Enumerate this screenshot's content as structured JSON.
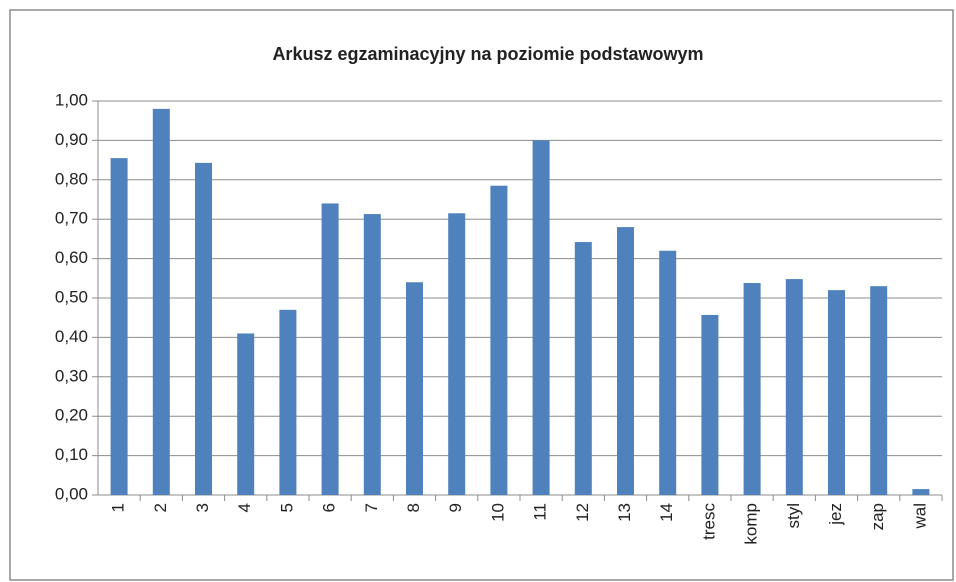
{
  "chart_data": {
    "type": "bar",
    "title": "Arkusz egzaminacyjny  na poziomie  podstawowym",
    "categories": [
      "1",
      "2",
      "3",
      "4",
      "5",
      "6",
      "7",
      "8",
      "9",
      "10",
      "11",
      "12",
      "13",
      "14",
      "tresc",
      "komp",
      "styl",
      "jez",
      "zap",
      "wal"
    ],
    "values": [
      0.855,
      0.98,
      0.843,
      0.41,
      0.47,
      0.74,
      0.713,
      0.54,
      0.715,
      0.785,
      0.9,
      0.642,
      0.68,
      0.62,
      0.457,
      0.538,
      0.548,
      0.52,
      0.53,
      0.015
    ],
    "color": "#4f81bd",
    "ylim": [
      0,
      1
    ],
    "yticks": [
      {
        "value": 0,
        "label": "0,00"
      },
      {
        "value": 0.1,
        "label": "0,10"
      },
      {
        "value": 0.2,
        "label": "0,20"
      },
      {
        "value": 0.3,
        "label": "0,30"
      },
      {
        "value": 0.4,
        "label": "0,40"
      },
      {
        "value": 0.5,
        "label": "0,50"
      },
      {
        "value": 0.6,
        "label": "0,60"
      },
      {
        "value": 0.7,
        "label": "0,70"
      },
      {
        "value": 0.8,
        "label": "0,80"
      },
      {
        "value": 0.9,
        "label": "0,90"
      },
      {
        "value": 1,
        "label": "1,00"
      }
    ],
    "grid": true
  }
}
